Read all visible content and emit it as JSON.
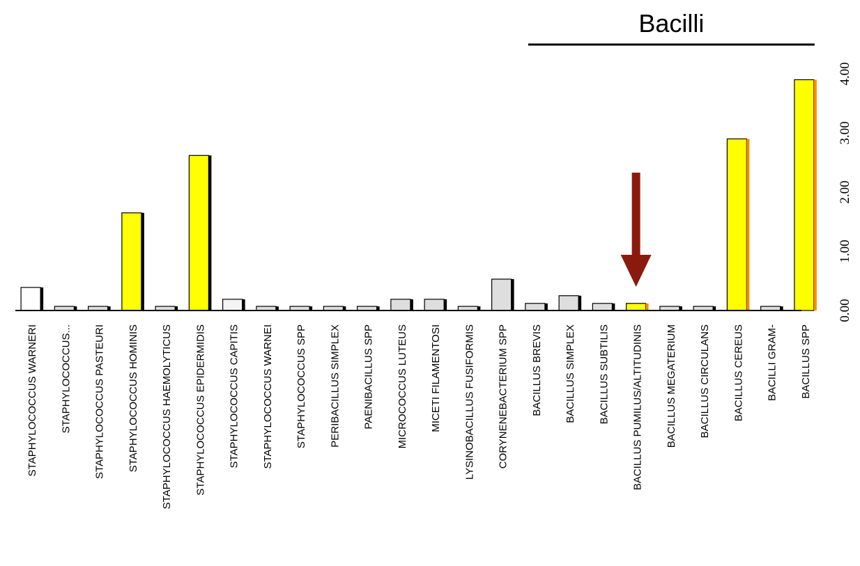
{
  "chart_data": {
    "type": "bar",
    "categories": [
      "STAPHYLOCOCCUS WARNERI",
      "STAPHYLOCOCCUS...",
      "STAPHYLOCOCCUS PASTEURI",
      "STAPHYLOCOCCUS HOMINIS",
      "STAPHYLOCOCCUS HAEMOLYTICUS",
      "STAPHYLOCOCCUS EPIDERMIDIS",
      "STAPHYLOCOCCUS CAPITIS",
      "STAPHYLOCOCCUS WARNEI",
      "STAPHYLOCOCCUS SPP",
      "PERIBACILLUS SIMPLEX",
      "PAENIBACILLUS SPP",
      "MICROCOCCUS LUTEUS",
      "MICETI FILAMENTOSI",
      "LYSINOBACILLUS FUSIFORMIS",
      "CORYNENEBACTERIUM SPP",
      "BACILLUS BREVIS",
      "BACILLUS SIMPLEX",
      "BACILLUS SUBTILIS",
      "BACILLUS PUMILUS/ALTITUDINIS",
      "BACILLUS MEGATERIUM",
      "BACILLUS CIRCULANS",
      "BACILLUS CEREUS",
      "BACILLI GRAM-",
      "BACILLUS SPP"
    ],
    "values": [
      0.39,
      0.07,
      0.07,
      1.65,
      0.07,
      2.62,
      0.19,
      0.07,
      0.07,
      0.07,
      0.07,
      0.19,
      0.19,
      0.07,
      0.53,
      0.12,
      0.25,
      0.12,
      0.12,
      0.07,
      0.07,
      2.9,
      0.07,
      3.9
    ],
    "bar_colors": [
      "#ffffff",
      "#dedede",
      "#dedede",
      "#ffff00",
      "#dedede",
      "#ffff00",
      "#f4f4f4",
      "#dedede",
      "#dedede",
      "#dedede",
      "#dedede",
      "#dedede",
      "#dedede",
      "#dedede",
      "#dedede",
      "#dedede",
      "#dedede",
      "#dedede",
      "#ffff00",
      "#dedede",
      "#dedede",
      "#ffff00",
      "#dedede",
      "#ffff00"
    ],
    "side_colors": [
      "#000000",
      "#000000",
      "#000000",
      "#000000",
      "#000000",
      "#000000",
      "#000000",
      "#000000",
      "#000000",
      "#000000",
      "#000000",
      "#000000",
      "#000000",
      "#000000",
      "#000000",
      "#000000",
      "#000000",
      "#000000",
      "#ff8c00",
      "#000000",
      "#000000",
      "#ff8c00",
      "#000000",
      "#ff8c00"
    ],
    "ylim": [
      0,
      4
    ],
    "yticks": [
      "0.00",
      "1.00",
      "2.00",
      "3.00",
      "4.00"
    ],
    "y_axis_side": "right",
    "grid": false,
    "group_annotation": {
      "label": "Bacilli",
      "from_category": 15,
      "to_category": 23
    },
    "arrow_annotation": {
      "target_category": 18,
      "color": "#8b1a0e"
    },
    "title": "",
    "xlabel": "",
    "ylabel": ""
  }
}
